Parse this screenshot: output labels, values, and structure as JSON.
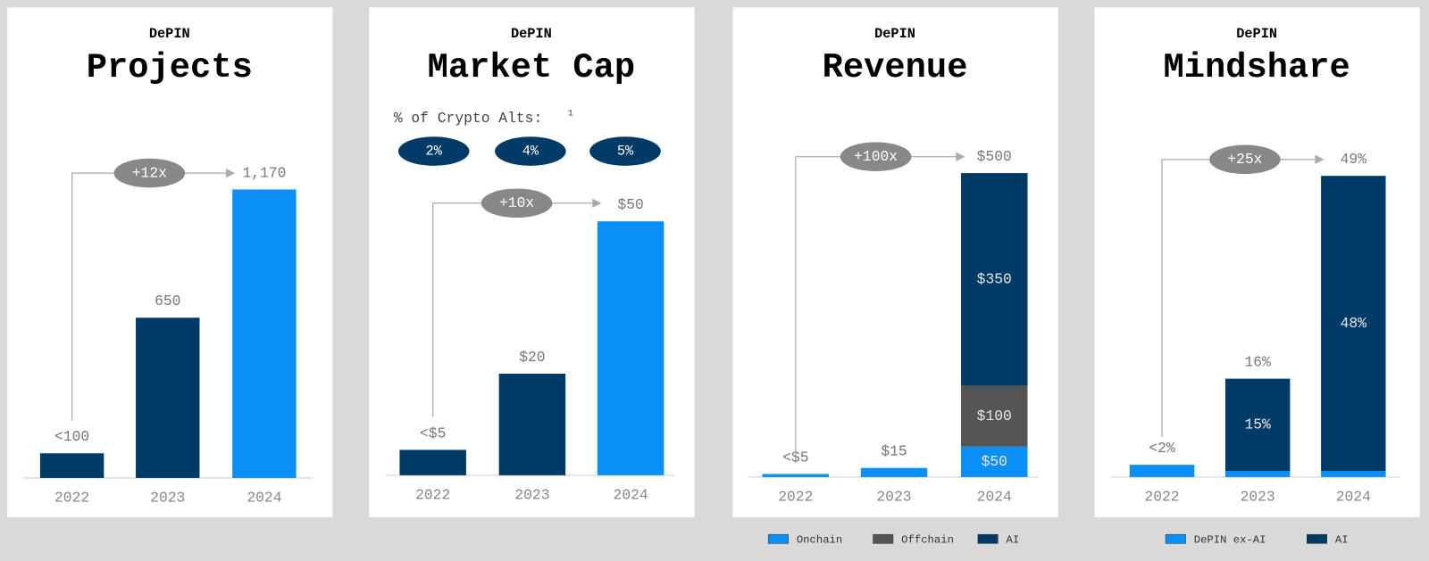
{
  "chart_data": [
    {
      "type": "bar",
      "subtitle": "DePIN",
      "title": "Projects",
      "categories": [
        "2022",
        "2023",
        "2024"
      ],
      "values": [
        100,
        650,
        1170
      ],
      "value_labels": [
        "<100",
        "650",
        "1,170"
      ],
      "colors": [
        "#003a66",
        "#003a66",
        "#0a8ff7"
      ],
      "annotation": "+12x"
    },
    {
      "type": "bar",
      "subtitle": "DePIN",
      "title": "Market Cap",
      "categories": [
        "2022",
        "2023",
        "2024"
      ],
      "values": [
        5,
        20,
        50
      ],
      "value_labels": [
        "<$5",
        "$20",
        "$50"
      ],
      "colors": [
        "#003a66",
        "#003a66",
        "#0a8ff7"
      ],
      "annotation": "+10x",
      "alts_label": "% of Crypto Alts:",
      "alts_note": "1",
      "alts": [
        "2%",
        "4%",
        "5%"
      ],
      "alts_color": "#003a66"
    },
    {
      "type": "stacked_bar",
      "subtitle": "DePIN",
      "title": "Revenue",
      "categories": [
        "2022",
        "2023",
        "2024"
      ],
      "series": [
        {
          "name": "Onchain",
          "color": "#0a8ff7",
          "values": [
            5,
            15,
            50
          ],
          "value_labels": [
            null,
            null,
            "$50"
          ]
        },
        {
          "name": "Offchain",
          "color": "#555555",
          "values": [
            null,
            null,
            100
          ],
          "value_labels": [
            null,
            null,
            "$100"
          ]
        },
        {
          "name": "AI",
          "color": "#003a66",
          "values": [
            null,
            null,
            350
          ],
          "value_labels": [
            null,
            null,
            "$350"
          ]
        }
      ],
      "totals": [
        5,
        15,
        500
      ],
      "totals_labels": [
        "<$5",
        "$15",
        "$500"
      ],
      "annotation": "+100x"
    },
    {
      "type": "stacked_bar",
      "subtitle": "DePIN",
      "title": "Mindshare",
      "categories": [
        "2022",
        "2023",
        "2024"
      ],
      "series": [
        {
          "name": "DePIN ex-AI",
          "color": "#0a8ff7",
          "values": [
            2,
            1,
            1
          ]
        },
        {
          "name": "AI",
          "color": "#003a66",
          "values": [
            null,
            15,
            48
          ],
          "value_labels": [
            null,
            "15%",
            "48%"
          ]
        }
      ],
      "totals": [
        2,
        16,
        49
      ],
      "totals_labels": [
        "<2%",
        "16%",
        "49%"
      ],
      "annotation": "+25x"
    }
  ]
}
